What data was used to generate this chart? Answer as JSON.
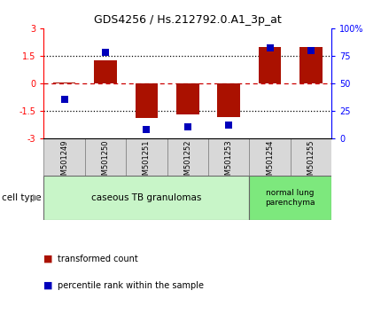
{
  "title": "GDS4256 / Hs.212792.0.A1_3p_at",
  "samples": [
    "GSM501249",
    "GSM501250",
    "GSM501251",
    "GSM501252",
    "GSM501253",
    "GSM501254",
    "GSM501255"
  ],
  "transformed_count": [
    0.02,
    1.25,
    -1.9,
    -1.7,
    -1.85,
    2.0,
    2.0
  ],
  "percentile_rank": [
    35,
    78,
    8,
    10,
    12,
    82,
    80
  ],
  "bar_color": "#aa1100",
  "dot_color": "#0000bb",
  "ylim_left": [
    -3,
    3
  ],
  "ylim_right": [
    0,
    100
  ],
  "yticks_left": [
    -3,
    -1.5,
    0,
    1.5,
    3
  ],
  "yticks_right": [
    0,
    25,
    50,
    75,
    100
  ],
  "yticklabels_left": [
    "-3",
    "-1.5",
    "0",
    "1.5",
    "3"
  ],
  "yticklabels_right": [
    "0",
    "25",
    "50",
    "75",
    "100%"
  ],
  "group1_label": "caseous TB granulomas",
  "group2_label": "normal lung\nparenchyma",
  "group1_color": "#c8f5c8",
  "group2_color": "#7de87d",
  "cell_type_label": "cell type",
  "legend1_label": "transformed count",
  "legend2_label": "percentile rank within the sample",
  "bar_width": 0.55,
  "dot_size": 40
}
